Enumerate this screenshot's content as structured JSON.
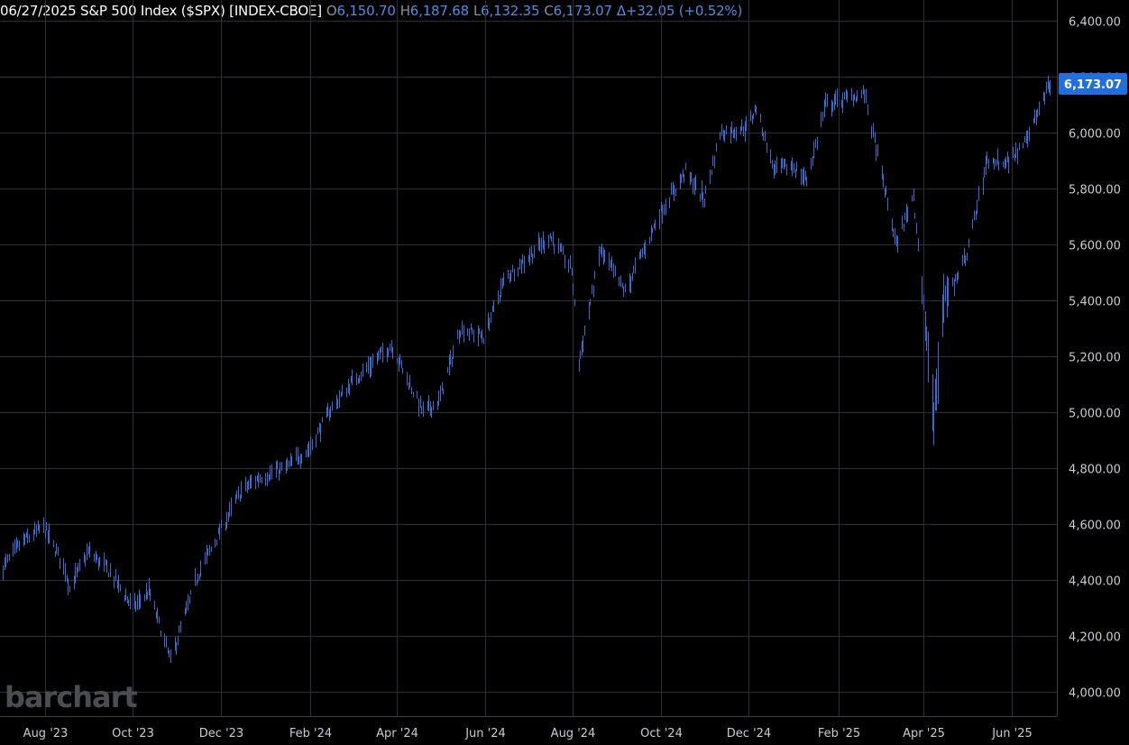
{
  "header": {
    "title": "06/27/2025 S&P 500 Index ($SPX) [INDEX-CBOE]",
    "open_key": "O",
    "open": "6,150.70",
    "high_key": "H",
    "high": "6,187.68",
    "low_key": "L",
    "low": "6,132.35",
    "close_key": "C",
    "close": "6,173.07",
    "change": "Δ+32.05 (+0.52%)"
  },
  "watermark": "barchart",
  "last_price_label": "6,173.07",
  "colors": {
    "background": "#000000",
    "bars": "#2f6fd6",
    "grid": "#2b2f38",
    "price_label": "#1f6fe0",
    "header_values": "#4d8ee8"
  },
  "chart_data": {
    "type": "line",
    "title": "S&P 500 Index ($SPX) [INDEX-CBOE]",
    "xlabel": "",
    "ylabel": "",
    "grid": true,
    "y_axis_side": "right",
    "ylim": [
      3950,
      6450
    ],
    "yticks": [
      4000,
      4200,
      4400,
      4600,
      4800,
      5000,
      5200,
      5400,
      5600,
      5800,
      6000,
      6200,
      6400
    ],
    "ytick_labels": [
      "4,000.00",
      "4,200.00",
      "4,400.00",
      "4,600.00",
      "4,800.00",
      "5,000.00",
      "5,200.00",
      "5,400.00",
      "5,600.00",
      "5,800.00",
      "6,000.00",
      "6,200.00",
      "6,400.00"
    ],
    "x_range": [
      "2023-07-01",
      "2025-06-30"
    ],
    "xtick_dates": [
      "2023-08-01",
      "2023-10-01",
      "2023-12-01",
      "2024-02-01",
      "2024-04-01",
      "2024-06-01",
      "2024-08-01",
      "2024-10-01",
      "2024-12-01",
      "2025-02-01",
      "2025-04-01",
      "2025-06-01"
    ],
    "xtick_labels": [
      "Aug '23",
      "Oct '23",
      "Dec '23",
      "Feb '24",
      "Apr '24",
      "Jun '24",
      "Aug '24",
      "Oct '24",
      "Dec '24",
      "Feb '25",
      "Apr '25",
      "Jun '25"
    ],
    "series": [
      {
        "x": [
          "2023-07-01",
          "2023-07-15",
          "2023-07-31",
          "2023-08-15",
          "2023-08-18",
          "2023-08-31",
          "2023-09-15",
          "2023-10-01",
          "2023-10-12",
          "2023-10-27",
          "2023-11-15",
          "2023-12-01",
          "2023-12-15",
          "2023-12-29",
          "2024-01-15",
          "2024-01-31",
          "2024-02-15",
          "2024-03-01",
          "2024-03-28",
          "2024-04-19",
          "2024-04-30",
          "2024-05-15",
          "2024-05-31",
          "2024-06-15",
          "2024-07-16",
          "2024-07-31",
          "2024-08-05",
          "2024-08-20",
          "2024-09-06",
          "2024-09-30",
          "2024-10-18",
          "2024-10-31",
          "2024-11-11",
          "2024-11-30",
          "2024-12-06",
          "2024-12-18",
          "2024-12-31",
          "2025-01-10",
          "2025-01-23",
          "2025-02-19",
          "2025-03-13",
          "2025-03-25",
          "2025-04-08",
          "2025-04-15",
          "2025-04-30",
          "2025-05-15",
          "2025-05-31",
          "2025-06-15",
          "2025-06-27"
        ],
        "y": [
          4430,
          4530,
          4590,
          4440,
          4370,
          4500,
          4430,
          4300,
          4360,
          4110,
          4420,
          4580,
          4720,
          4770,
          4800,
          4870,
          5010,
          5110,
          5240,
          5000,
          5040,
          5300,
          5270,
          5480,
          5630,
          5510,
          5180,
          5580,
          5430,
          5710,
          5860,
          5760,
          6000,
          6020,
          6090,
          5870,
          5880,
          5830,
          6100,
          6140,
          5600,
          5780,
          4980,
          5400,
          5550,
          5900,
          5900,
          6020,
          6173.07
        ]
      }
    ]
  }
}
